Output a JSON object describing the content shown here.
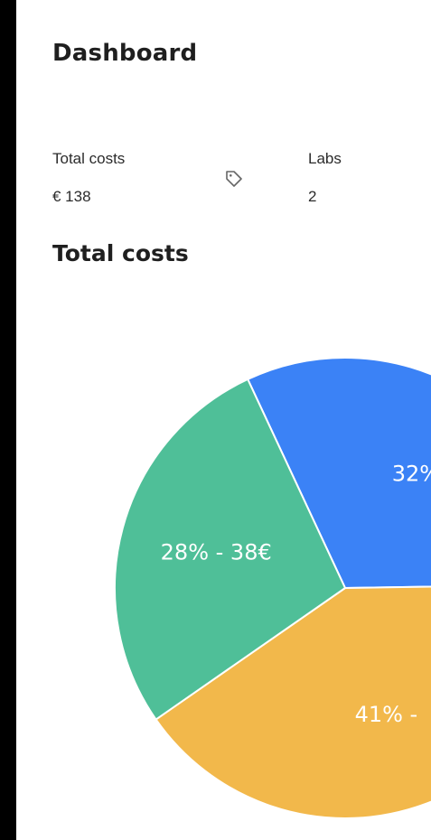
{
  "page": {
    "title": "Dashboard"
  },
  "stats": {
    "total_costs_label": "Total costs",
    "total_costs_value": "€ 138",
    "labs_label": "Labs",
    "labs_value": "2",
    "icon": "tag-icon"
  },
  "section": {
    "title": "Total costs"
  },
  "chart_data": {
    "type": "pie",
    "title": "Total costs",
    "slices": [
      {
        "percent": 32,
        "color": "#3b82f6",
        "label": "32%"
      },
      {
        "percent": 41,
        "color": "#f2b84b",
        "label": "41% -"
      },
      {
        "percent": 28,
        "color": "#4fbf98",
        "label": "28% - 38€"
      }
    ]
  }
}
